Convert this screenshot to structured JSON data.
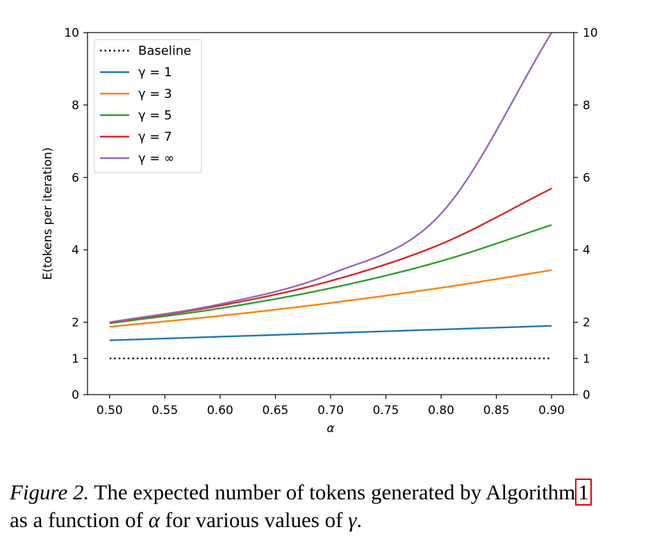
{
  "chart_data": {
    "type": "line",
    "xlabel": "α",
    "ylabel": "E(tokens per iteration)",
    "xlim": [
      0.48,
      0.92
    ],
    "ylim": [
      0,
      10
    ],
    "x_ticks": [
      "0.50",
      "0.55",
      "0.60",
      "0.65",
      "0.70",
      "0.75",
      "0.80",
      "0.85",
      "0.90"
    ],
    "y_ticks_left": [
      "0",
      "1",
      "2",
      "4",
      "6",
      "8",
      "10"
    ],
    "y_ticks_right": [
      "0",
      "1",
      "2",
      "4",
      "6",
      "8",
      "10"
    ],
    "legend_position": "upper-left",
    "grid": false,
    "series": [
      {
        "name": "Baseline",
        "style": "dotted",
        "color": "#000000",
        "x": [
          0.5,
          0.9
        ],
        "y": [
          1,
          1
        ]
      },
      {
        "name": "γ = 1",
        "style": "solid",
        "color": "#1f77b4",
        "x": [
          0.5,
          0.6,
          0.7,
          0.8,
          0.9
        ],
        "y": [
          1.5,
          1.6,
          1.7,
          1.8,
          1.9
        ]
      },
      {
        "name": "γ = 3",
        "style": "solid",
        "color": "#ff7f0e",
        "x": [
          0.5,
          0.6,
          0.7,
          0.8,
          0.9
        ],
        "y": [
          1.875,
          2.176,
          2.533,
          2.952,
          3.439
        ]
      },
      {
        "name": "γ = 5",
        "style": "solid",
        "color": "#2ca02c",
        "x": [
          0.5,
          0.6,
          0.7,
          0.8,
          0.9
        ],
        "y": [
          1.969,
          2.383,
          2.941,
          3.689,
          4.686
        ]
      },
      {
        "name": "γ = 7",
        "style": "solid",
        "color": "#d62728",
        "x": [
          0.5,
          0.6,
          0.7,
          0.8,
          0.9
        ],
        "y": [
          1.992,
          2.458,
          3.141,
          4.161,
          5.695
        ]
      },
      {
        "name": "γ = ∞",
        "style": "solid",
        "color": "#9467bd",
        "x": [
          0.5,
          0.6,
          0.7,
          0.8,
          0.9
        ],
        "y": [
          2.0,
          2.5,
          3.333,
          5.0,
          10.0
        ]
      }
    ]
  },
  "caption": {
    "figure_label": "Figure 2.",
    "text_before_ref": " The expected number of tokens generated by Algorithm",
    "ref": "1",
    "line2_before_alpha": "as a function of ",
    "alpha": "α",
    "line2_middle": " for various values of ",
    "gamma": "γ",
    "line2_end": "."
  }
}
